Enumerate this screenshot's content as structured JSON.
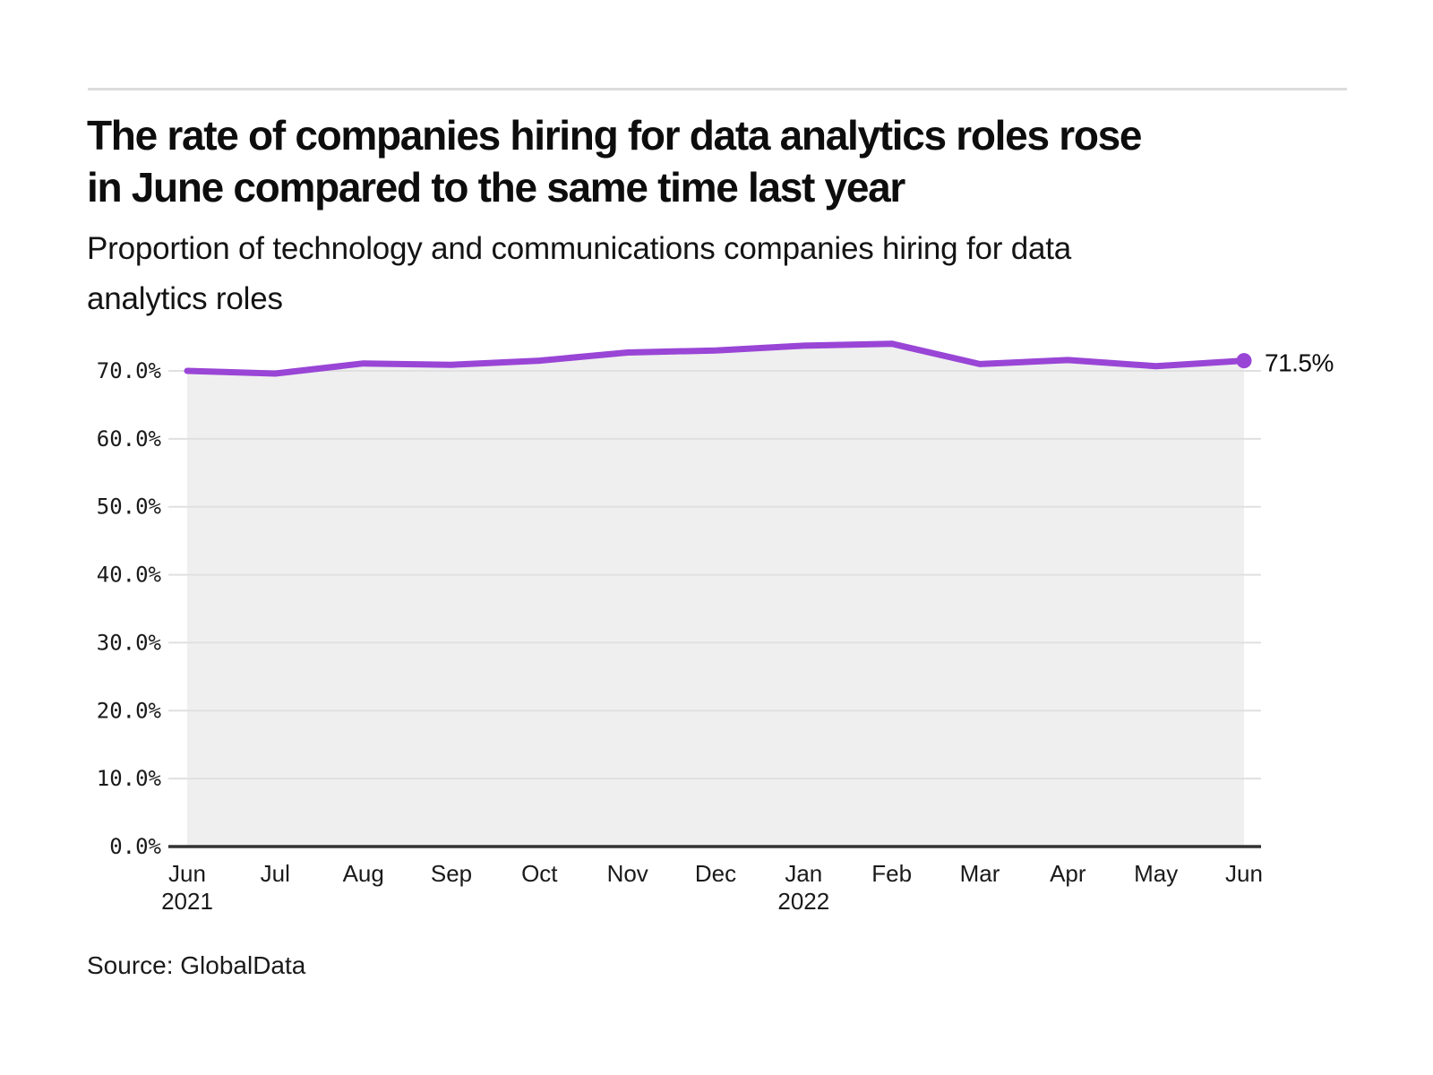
{
  "header": {
    "title": "The rate of companies hiring for data analytics roles rose in June compared to the same time last year",
    "title_lines": [
      "The rate of companies hiring for data analytics roles rose",
      "in June compared to the same time last year"
    ],
    "subtitle": "Proportion of technology and communications companies hiring for data analytics roles",
    "subtitle_lines": [
      "Proportion of technology and communications companies hiring for data",
      "analytics roles"
    ]
  },
  "chart_data": {
    "type": "line",
    "title": "The rate of companies hiring for data analytics roles rose in June compared to the same time last year",
    "subtitle": "Proportion of technology and communications companies hiring for data analytics roles",
    "categories": [
      "Jun 2021",
      "Jul",
      "Aug",
      "Sep",
      "Oct",
      "Nov",
      "Dec",
      "Jan 2022",
      "Feb",
      "Mar",
      "Apr",
      "May",
      "Jun"
    ],
    "values": [
      70.0,
      69.6,
      71.1,
      70.9,
      71.5,
      72.7,
      73.0,
      73.7,
      74.0,
      71.0,
      71.6,
      70.7,
      71.5
    ],
    "x_ticks": [
      {
        "label": "Jun",
        "year": "2021"
      },
      {
        "label": "Jul"
      },
      {
        "label": "Aug"
      },
      {
        "label": "Sep"
      },
      {
        "label": "Oct"
      },
      {
        "label": "Nov"
      },
      {
        "label": "Dec"
      },
      {
        "label": "Jan",
        "year": "2022"
      },
      {
        "label": "Feb"
      },
      {
        "label": "Mar"
      },
      {
        "label": "Apr"
      },
      {
        "label": "May"
      },
      {
        "label": "Jun"
      }
    ],
    "y_ticks": [
      "0.0%",
      "10.0%",
      "20.0%",
      "30.0%",
      "40.0%",
      "50.0%",
      "60.0%",
      "70.0%"
    ],
    "ylim": [
      0,
      75
    ],
    "xlabel": "",
    "ylabel": "",
    "grid": true,
    "legend": "none",
    "end_label": "71.5%",
    "colors": {
      "line": "#9945d6",
      "area_fill": "#efefef",
      "gridline": "#e0e0e0",
      "axis": "#333333",
      "tick_text": "#1a1a1a"
    }
  },
  "footer": {
    "source": "Source: GlobalData"
  }
}
